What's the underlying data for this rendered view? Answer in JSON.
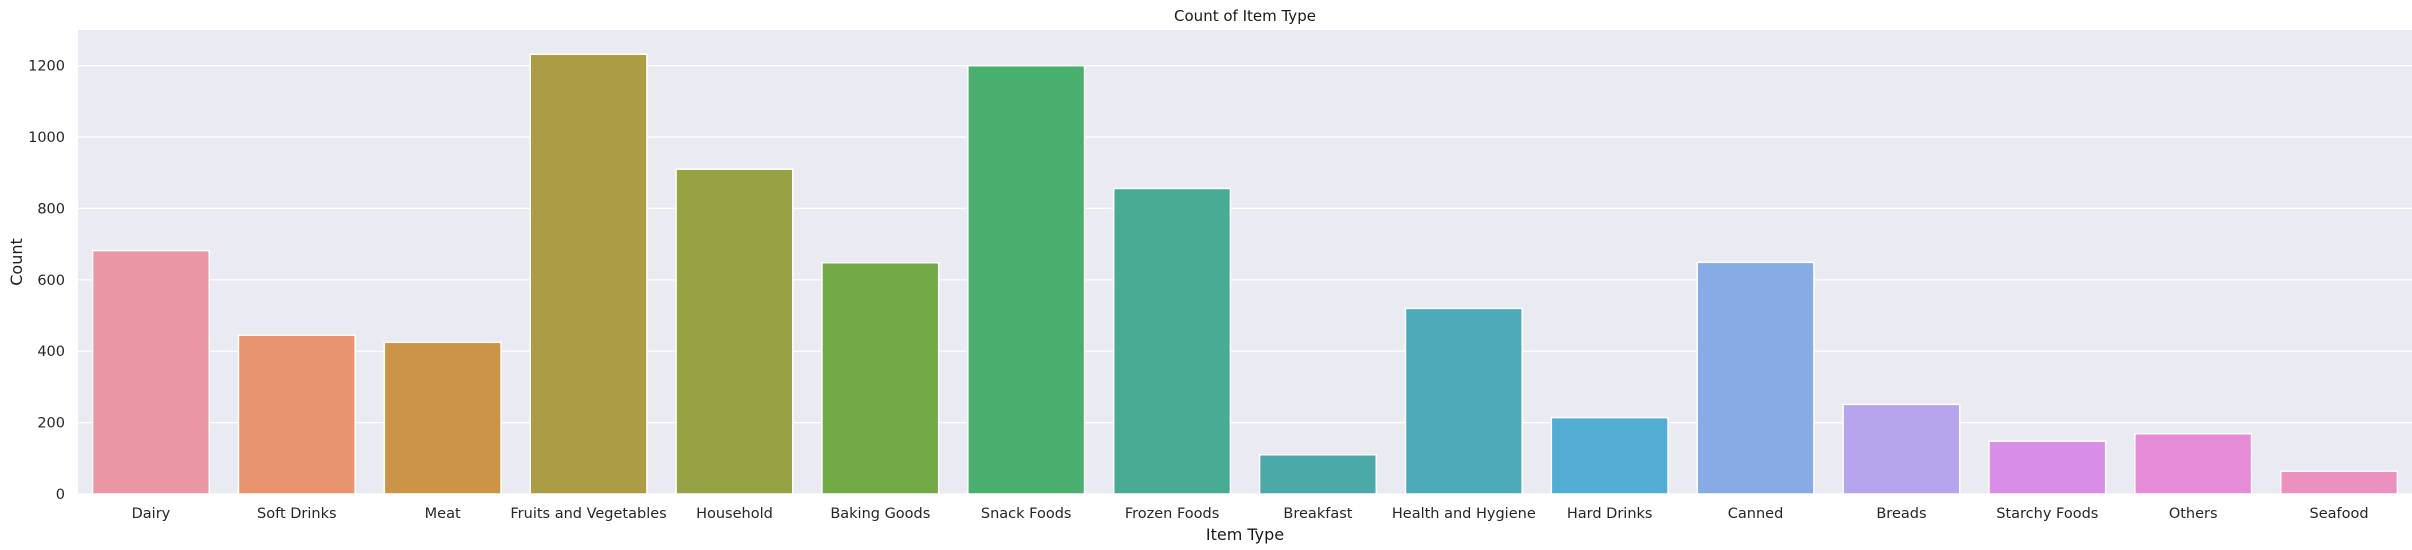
{
  "chart_data": {
    "type": "bar",
    "title": "Count of Item Type",
    "xlabel": "Item Type",
    "ylabel": "Count",
    "ylim": [
      0,
      1300
    ],
    "yticks": [
      0,
      200,
      400,
      600,
      800,
      1000,
      1200
    ],
    "grid": true,
    "categories": [
      "Dairy",
      "Soft Drinks",
      "Meat",
      "Fruits and Vegetables",
      "Household",
      "Baking Goods",
      "Snack Foods",
      "Frozen Foods",
      "Breakfast",
      "Health and Hygiene",
      "Hard Drinks",
      "Canned",
      "Breads",
      "Starchy Foods",
      "Others",
      "Seafood"
    ],
    "values": [
      682,
      445,
      425,
      1232,
      910,
      648,
      1200,
      856,
      110,
      520,
      214,
      649,
      251,
      148,
      169,
      64
    ],
    "colors": [
      "#ea96a3",
      "#e7946f",
      "#cb9447",
      "#ad9c46",
      "#97a245",
      "#73aa47",
      "#4aaf6e",
      "#49ab94",
      "#4ba9a8",
      "#4dabb9",
      "#52acd4",
      "#86abe5",
      "#b6a4ec",
      "#d88ee6",
      "#e68cd6",
      "#eb91c0"
    ]
  }
}
